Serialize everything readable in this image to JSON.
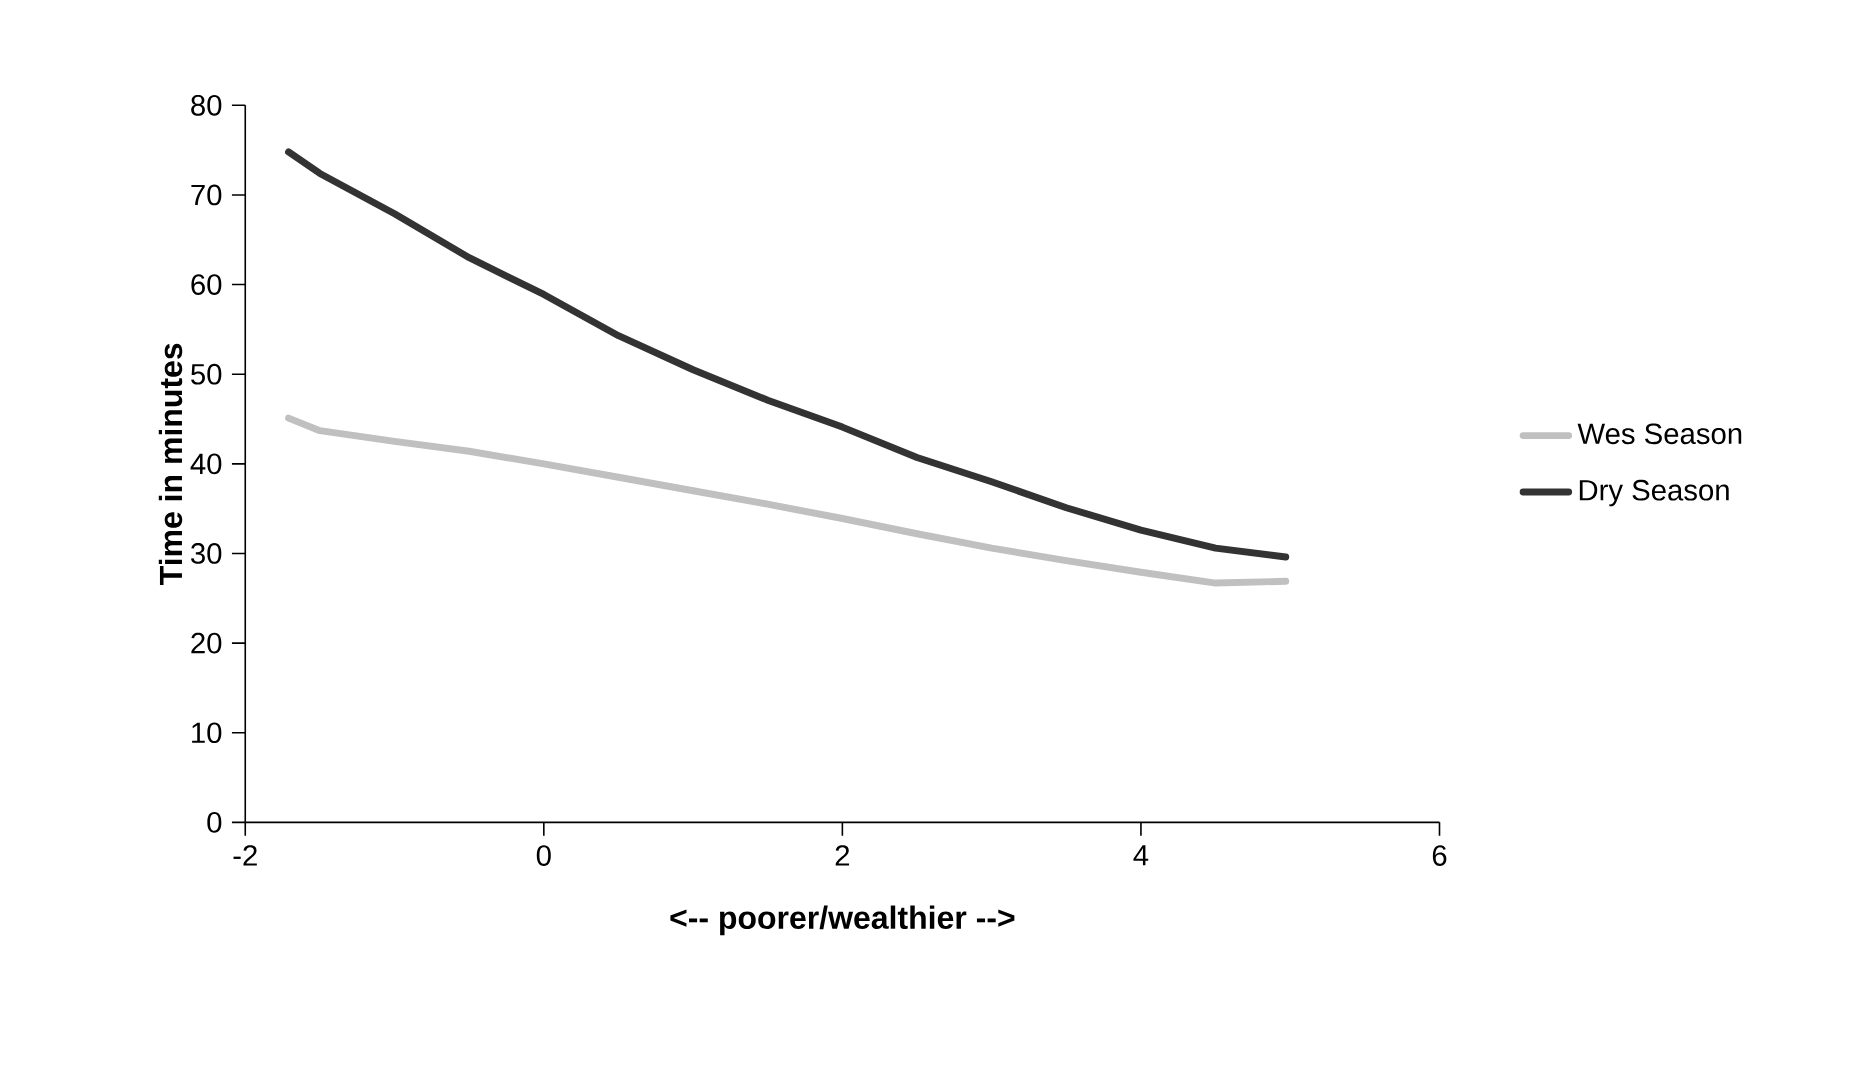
{
  "chart_data": {
    "type": "line",
    "xlabel": "<-- poorer/wealthier -->",
    "ylabel": "Time in minutes",
    "xlim": [
      -2,
      6
    ],
    "xticks": [
      -2,
      0,
      2,
      4,
      6
    ],
    "ylim": [
      0,
      80
    ],
    "yticks": [
      0,
      10,
      20,
      30,
      40,
      50,
      60,
      70,
      80
    ],
    "grid": false,
    "legend": "right",
    "marker": "none",
    "line_style": "solid",
    "series": [
      {
        "name": "Wes Season",
        "color": "#c0c0c0",
        "x": [
          -1.71,
          -1.5,
          -1,
          -0.5,
          0,
          0.5,
          1,
          1.5,
          2,
          2.5,
          3,
          3.5,
          4,
          4.5,
          4.97
        ],
        "values": [
          45.1,
          43.7,
          42.5,
          41.4,
          40.0,
          38.5,
          37,
          35.5,
          33.9,
          32.2,
          30.6,
          29.2,
          27.9,
          26.7,
          26.9
        ]
      },
      {
        "name": "Dry Season",
        "color": "#333333",
        "x": [
          -1.71,
          -1.5,
          -1,
          -0.5,
          0,
          0.5,
          1,
          1.5,
          2,
          2.5,
          3,
          3.5,
          4,
          4.5,
          4.97
        ],
        "values": [
          74.8,
          72.4,
          67.9,
          63,
          58.9,
          54.3,
          50.5,
          47.1,
          44.1,
          40.7,
          38,
          35.1,
          32.6,
          30.6,
          29.6
        ]
      }
    ]
  }
}
